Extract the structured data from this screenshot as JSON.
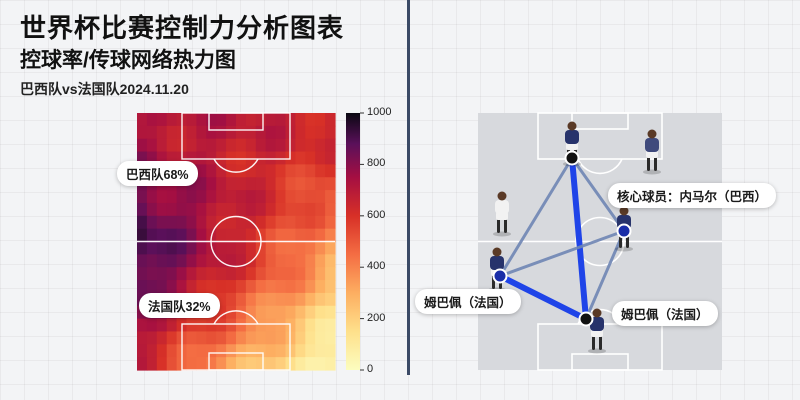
{
  "header": {
    "title": "世界杯比赛控制力分析图表",
    "subtitle": "控球率/传球网络热力图",
    "meta": "巴西队vs法国队2024.11.20"
  },
  "chart_data": [
    {
      "type": "heatmap",
      "title": "",
      "colorbar": {
        "min": 0,
        "max": 1000,
        "ticks": [
          0,
          200,
          400,
          600,
          800,
          1000
        ],
        "palette": "magma-reversed"
      },
      "annotations": [
        {
          "team": "巴西",
          "label": "巴西队68%",
          "value": 68
        },
        {
          "team": "法国",
          "label": "法国队32%",
          "value": 32
        }
      ]
    },
    {
      "type": "network",
      "title": "",
      "annotations": [
        {
          "id": "core",
          "label": "核心球员：内马尔（巴西）"
        },
        {
          "id": "mbappe1",
          "label": "姆巴佩（法国）"
        },
        {
          "id": "mbappe2",
          "label": "姆巴佩（法国）"
        }
      ],
      "nodes": [
        "top",
        "right",
        "left",
        "bottom"
      ],
      "edges": [
        {
          "from": "top",
          "to": "bottom",
          "strength": "strong"
        },
        {
          "from": "left",
          "to": "bottom",
          "strength": "strong"
        },
        {
          "from": "top",
          "to": "left",
          "strength": "medium"
        },
        {
          "from": "top",
          "to": "right",
          "strength": "medium"
        },
        {
          "from": "left",
          "to": "right",
          "strength": "medium"
        },
        {
          "from": "right",
          "to": "bottom",
          "strength": "medium"
        }
      ]
    }
  ],
  "colors": {
    "divider": "#3b4a66",
    "node": "#1a2ea8",
    "edge_strong": "#1f44e8",
    "edge_medium": "#6f86b4"
  }
}
